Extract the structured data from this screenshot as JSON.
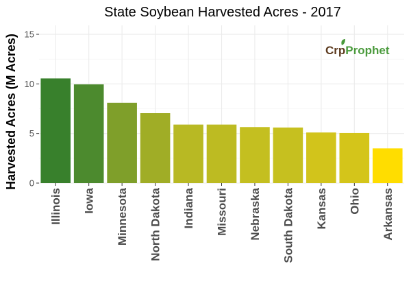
{
  "chart_data": {
    "type": "bar",
    "title": "State Soybean Harvested Acres - 2017",
    "xlabel": "",
    "ylabel": "Harvested Acres (M Acres)",
    "ylim": [
      0,
      15.9
    ],
    "yticks": [
      0,
      5,
      10,
      15
    ],
    "grid": true,
    "legend": "none",
    "categories": [
      "Illinois",
      "Iowa",
      "Minnesota",
      "North Dakota",
      "Indiana",
      "Missouri",
      "Nebraska",
      "South Dakota",
      "Kansas",
      "Ohio",
      "Arkansas"
    ],
    "values": [
      10.55,
      9.95,
      8.1,
      7.05,
      5.9,
      5.9,
      5.65,
      5.6,
      5.1,
      5.05,
      3.5
    ],
    "colors": [
      "#38802c",
      "#4c8a2e",
      "#7f9f2a",
      "#a0ad26",
      "#b8b923",
      "#bdbb22",
      "#c4bf20",
      "#c6c01f",
      "#d2c41b",
      "#d4c51a",
      "#ffdd00"
    ]
  },
  "logo": {
    "part1": "Cr",
    "part2": "p",
    "part3": "Prophet",
    "color_dark": "#5c3a1e",
    "color_green": "#4a9a3c"
  }
}
